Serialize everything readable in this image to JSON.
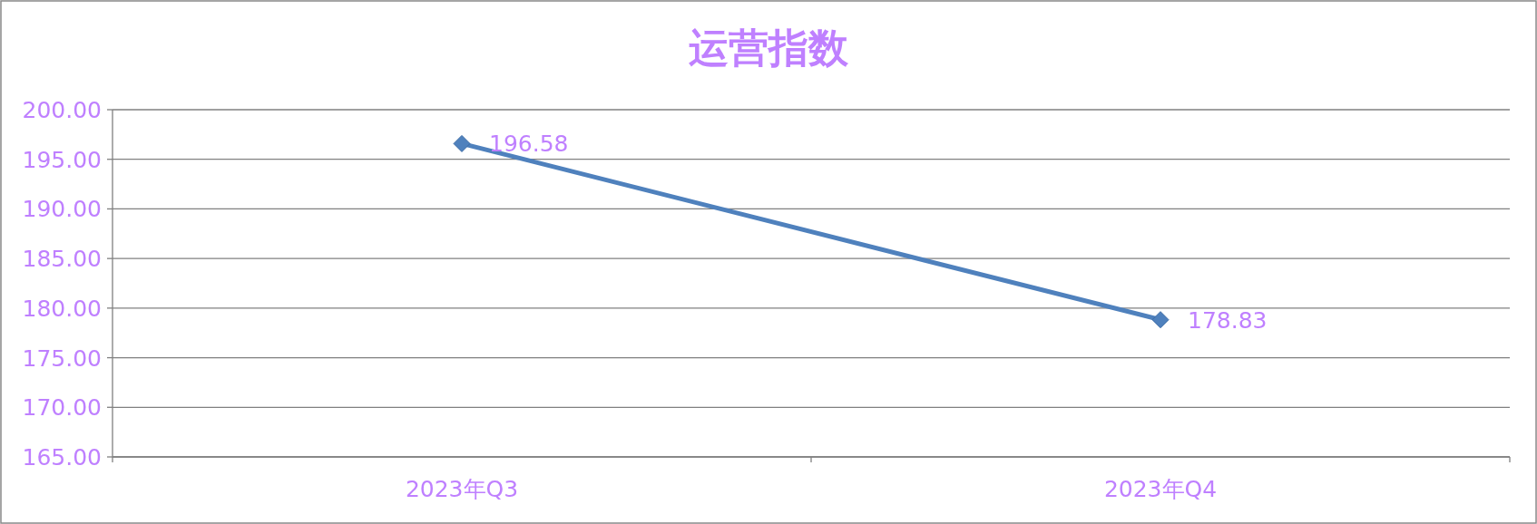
{
  "chart_data": {
    "type": "line",
    "title": "运营指数",
    "categories": [
      "2023年Q3",
      "2023年Q4"
    ],
    "series": [
      {
        "color": "#4f81bd",
        "values": [
          196.58,
          178.83
        ]
      }
    ],
    "ylim": [
      165,
      200
    ],
    "yticks": [
      {
        "value": 165,
        "label": "165.00"
      },
      {
        "value": 170,
        "label": "170.00"
      },
      {
        "value": 175,
        "label": "175.00"
      },
      {
        "value": 180,
        "label": "180.00"
      },
      {
        "value": 185,
        "label": "185.00"
      },
      {
        "value": 190,
        "label": "190.00"
      },
      {
        "value": 195,
        "label": "195.00"
      },
      {
        "value": 200,
        "label": "200.00"
      }
    ],
    "grid": "y",
    "marker": "diamond",
    "line_style": "solid",
    "data_labels": true
  }
}
